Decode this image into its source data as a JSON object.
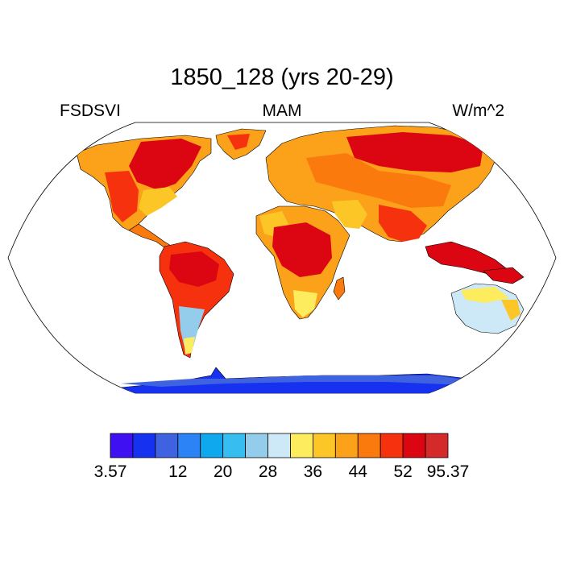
{
  "map": {
    "title": "1850_128 (yrs 20-29)",
    "left_label": "FSDSVI",
    "center_label": "MAM",
    "right_label": "W/m^2",
    "projection": "robinson",
    "land_style": "filled-contour",
    "ocean_color": "#ffffff"
  },
  "colorbar": {
    "colors": [
      "#3f10f2",
      "#1632f0",
      "#3f63e0",
      "#2b83f5",
      "#0fa8ef",
      "#38bdf0",
      "#94cdec",
      "#cde8f7",
      "#fdec5e",
      "#fdc627",
      "#fca11a",
      "#fb7a0e",
      "#f6320e",
      "#db0611",
      "#d42a2a"
    ],
    "tick_labels": [
      "3.57",
      "12",
      "20",
      "28",
      "36",
      "44",
      "52",
      "95.37"
    ],
    "tick_boundaries": [
      0,
      3,
      5,
      7,
      9,
      11,
      13,
      15
    ]
  }
}
